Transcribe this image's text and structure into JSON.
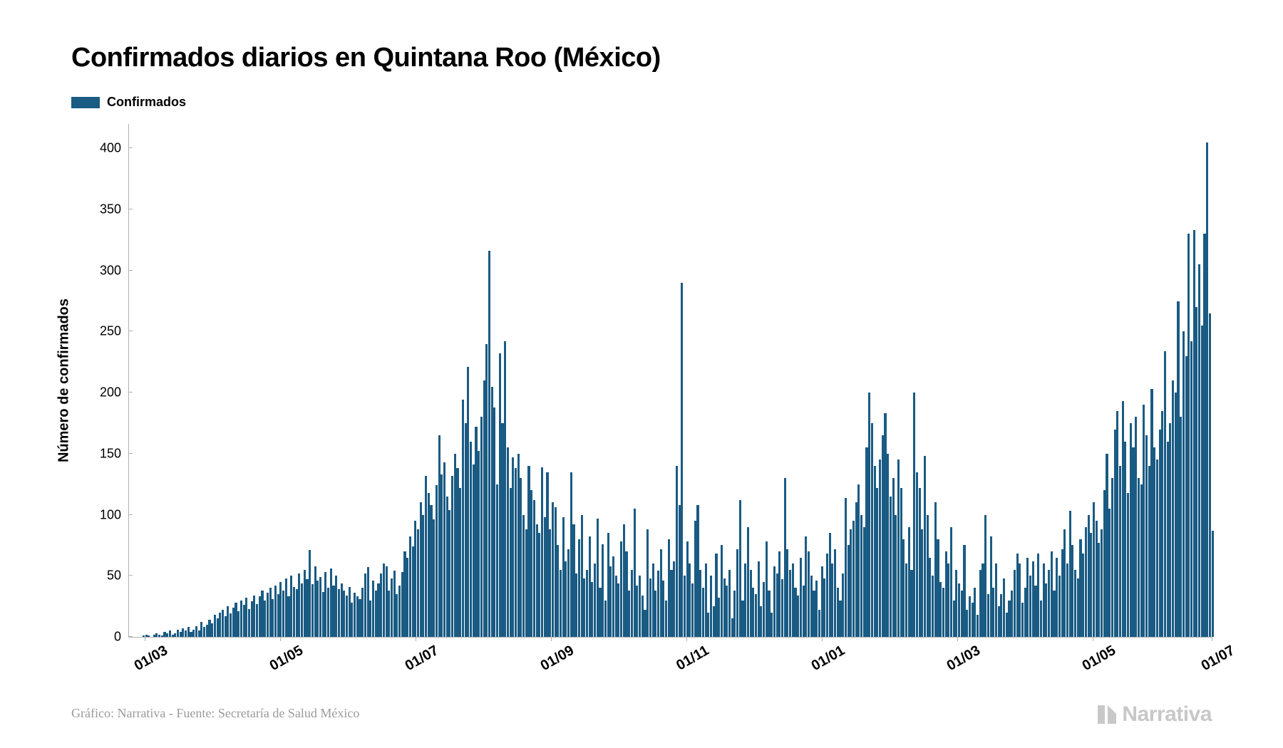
{
  "chart": {
    "type": "bar",
    "title": "Confirmados diarios en Quintana Roo (México)",
    "legend_label": "Confirmados",
    "ylabel": "Número de confirmados",
    "bar_color": "#1a5b83",
    "background_color": "#ffffff",
    "axis_color": "#b0b0b0",
    "text_color": "#000000",
    "title_fontsize": 38,
    "label_fontsize": 20,
    "tick_fontsize": 18,
    "ylim": [
      0,
      420
    ],
    "yticks": [
      0,
      50,
      100,
      150,
      200,
      250,
      300,
      350,
      400
    ],
    "xticks": [
      "01/03",
      "01/05",
      "01/07",
      "01/09",
      "01/11",
      "01/01",
      "01/03",
      "01/05",
      "01/07"
    ],
    "xtick_positions_pct": [
      1.5,
      14,
      26.5,
      39,
      51.5,
      64,
      76.5,
      89,
      100
    ],
    "values": [
      0,
      0,
      0,
      0,
      0,
      1,
      2,
      1,
      0,
      2,
      3,
      2,
      1,
      4,
      3,
      5,
      2,
      3,
      6,
      4,
      7,
      5,
      8,
      4,
      6,
      9,
      5,
      12,
      8,
      10,
      14,
      11,
      18,
      15,
      20,
      22,
      17,
      25,
      19,
      24,
      28,
      21,
      30,
      26,
      32,
      23,
      29,
      34,
      27,
      33,
      38,
      30,
      36,
      40,
      31,
      42,
      35,
      45,
      38,
      48,
      33,
      50,
      41,
      39,
      52,
      44,
      55,
      47,
      71,
      43,
      58,
      46,
      49,
      37,
      53,
      40,
      56,
      42,
      50,
      39,
      44,
      38,
      34,
      41,
      28,
      36,
      33,
      31,
      40,
      52,
      57,
      30,
      46,
      38,
      44,
      52,
      60,
      58,
      38,
      48,
      54,
      35,
      42,
      53,
      70,
      65,
      82,
      74,
      95,
      88,
      110,
      100,
      132,
      118,
      108,
      96,
      124,
      165,
      133,
      143,
      115,
      104,
      132,
      150,
      138,
      122,
      194,
      175,
      221,
      160,
      141,
      172,
      152,
      180,
      210,
      240,
      316,
      205,
      188,
      125,
      232,
      175,
      242,
      155,
      122,
      147,
      138,
      150,
      130,
      100,
      88,
      140,
      120,
      112,
      92,
      85,
      139,
      98,
      135,
      88,
      110,
      106,
      75,
      55,
      98,
      62,
      72,
      135,
      92,
      52,
      80,
      100,
      48,
      55,
      82,
      45,
      60,
      97,
      40,
      76,
      30,
      85,
      58,
      66,
      50,
      44,
      78,
      92,
      70,
      38,
      55,
      105,
      42,
      50,
      34,
      22,
      88,
      48,
      60,
      38,
      54,
      72,
      46,
      30,
      80,
      55,
      62,
      140,
      108,
      290,
      50,
      78,
      60,
      44,
      95,
      108,
      55,
      40,
      60,
      20,
      50,
      25,
      68,
      32,
      75,
      48,
      42,
      55,
      15,
      38,
      72,
      112,
      30,
      60,
      90,
      55,
      40,
      35,
      62,
      25,
      45,
      78,
      38,
      20,
      58,
      52,
      70,
      47,
      130,
      72,
      55,
      60,
      40,
      34,
      65,
      42,
      82,
      70,
      50,
      38,
      46,
      22,
      58,
      48,
      68,
      85,
      60,
      72,
      40,
      30,
      52,
      114,
      75,
      88,
      95,
      110,
      125,
      100,
      90,
      155,
      200,
      175,
      140,
      122,
      145,
      165,
      183,
      150,
      115,
      130,
      100,
      145,
      122,
      80,
      60,
      90,
      55,
      200,
      135,
      122,
      88,
      148,
      100,
      65,
      50,
      110,
      80,
      45,
      40,
      70,
      60,
      90,
      30,
      55,
      44,
      38,
      75,
      22,
      33,
      28,
      40,
      18,
      55,
      60,
      100,
      35,
      82,
      40,
      60,
      25,
      35,
      48,
      20,
      30,
      38,
      55,
      68,
      60,
      28,
      40,
      65,
      50,
      62,
      42,
      68,
      30,
      60,
      44,
      55,
      70,
      38,
      65,
      50,
      72,
      88,
      60,
      103,
      75,
      55,
      48,
      80,
      68,
      90,
      100,
      85,
      110,
      95,
      77,
      88,
      120,
      150,
      105,
      130,
      170,
      185,
      140,
      193,
      160,
      118,
      175,
      155,
      180,
      130,
      125,
      190,
      165,
      140,
      203,
      155,
      145,
      170,
      185,
      234,
      160,
      175,
      210,
      200,
      275,
      180,
      250,
      230,
      330,
      242,
      333,
      270,
      305,
      255,
      330,
      405,
      265,
      87
    ]
  },
  "footer": "Gráfico: Narrativa - Fuente: Secretaría de Salud México",
  "brand": "Narrativa",
  "brand_color": "#c8c8c8"
}
